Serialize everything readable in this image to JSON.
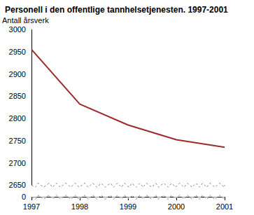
{
  "chart_data": {
    "type": "line",
    "title": "Personell i den offentlige tannhelsetjenesten. 1997-2001",
    "y_label": "Antall årsverk",
    "categories": [
      "1997",
      "1998",
      "1999",
      "2000",
      "2001"
    ],
    "values": [
      2955,
      2832,
      2785,
      2752,
      2735
    ],
    "color": "#9e2a2b",
    "ylim": [
      0,
      3000
    ],
    "yticks": [
      0,
      2650,
      2700,
      2750,
      2800,
      2850,
      2900,
      2950,
      3000
    ],
    "grid": false
  }
}
